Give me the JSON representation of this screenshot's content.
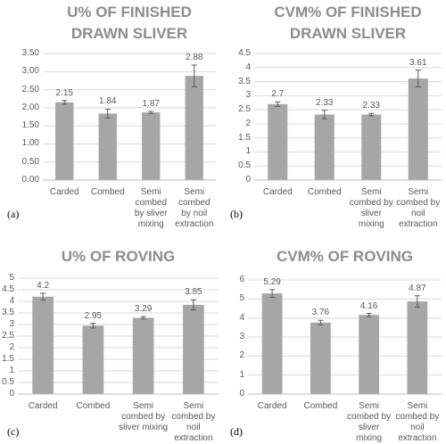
{
  "chart_data": [
    {
      "type": "bar",
      "label": "(a)",
      "title": "U% OF FINISHED DRAWN SLIVER",
      "categories": [
        "Carded",
        "Combed",
        "Semi combed by sliver mixing",
        "Semi combed by noil extraction"
      ],
      "values": [
        2.15,
        1.84,
        1.87,
        2.88
      ],
      "errors": [
        0.05,
        0.12,
        0.03,
        0.3
      ],
      "color": "#a6a6a6",
      "ylim": [
        0,
        3.5
      ],
      "yticks": [
        {
          "value": 0,
          "label": "0.00"
        },
        {
          "value": 0.5,
          "label": "0.50"
        },
        {
          "value": 1,
          "label": "1.00"
        },
        {
          "value": 1.5,
          "label": "1.50"
        },
        {
          "value": 2,
          "label": "2.00"
        },
        {
          "value": 2.5,
          "label": "2.50"
        },
        {
          "value": 3,
          "label": "3.00"
        },
        {
          "value": 3.5,
          "label": "3.50"
        }
      ],
      "grid": true
    },
    {
      "type": "bar",
      "label": "(b)",
      "title": "CVM% OF FINISHED DRAWN SLIVER",
      "categories": [
        "Carded",
        "Combed",
        "Semi combed by sliver mixing",
        "Semi combed by noil extraction"
      ],
      "values": [
        2.7,
        2.33,
        2.33,
        3.61
      ],
      "errors": [
        0.08,
        0.15,
        0.04,
        0.3
      ],
      "color": "#a6a6a6",
      "ylim": [
        0,
        4.5
      ],
      "yticks": [
        0,
        0.5,
        1,
        1.5,
        2,
        2.5,
        3,
        3.5,
        4,
        4.5
      ],
      "grid": true
    },
    {
      "type": "bar",
      "label": "(c)",
      "title": "U% OF ROVING",
      "categories": [
        "Carded",
        "Combed",
        "Semi combed by sliver mixing",
        "Semi combed by noil extraction"
      ],
      "values": [
        4.2,
        2.95,
        3.29,
        3.85
      ],
      "errors": [
        0.15,
        0.1,
        0.05,
        0.22
      ],
      "color": "#a6a6a6",
      "ylim": [
        0,
        5
      ],
      "yticks": [
        0,
        0.5,
        1,
        1.5,
        2,
        2.5,
        3,
        3.5,
        4,
        4.5,
        5
      ],
      "grid": true
    },
    {
      "type": "bar",
      "label": "(d)",
      "title": "CVM% OF ROVING",
      "categories": [
        "Carded",
        "Combed",
        "Semi combed by sliver mixing",
        "Semi combed by noil extraction"
      ],
      "values": [
        5.29,
        3.76,
        4.16,
        4.87
      ],
      "errors": [
        0.2,
        0.12,
        0.08,
        0.3
      ],
      "color": "#a6a6a6",
      "ylim": [
        0,
        6
      ],
      "yticks": [
        0,
        1,
        2,
        3,
        4,
        5,
        6
      ],
      "grid": true
    }
  ]
}
